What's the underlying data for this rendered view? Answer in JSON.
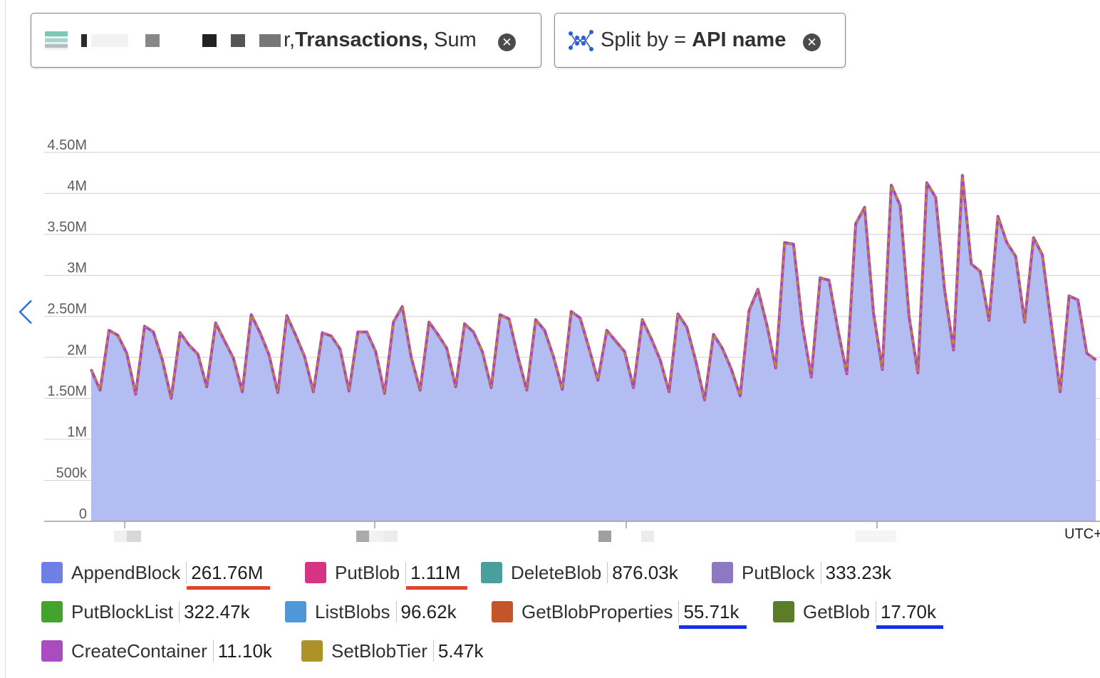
{
  "filters": {
    "metric": {
      "prefix": "r,",
      "bold": "Transactions,",
      "suffix": "Sum"
    },
    "split": {
      "label": "Split by",
      "eq": "=",
      "value": "API name"
    }
  },
  "chart_data": {
    "type": "area",
    "y_ticks": [
      "0",
      "500k",
      "1M",
      "1.50M",
      "2M",
      "2.50M",
      "3M",
      "3.50M",
      "4M",
      "4.50M"
    ],
    "y_tick_values": [
      0,
      500000,
      1000000,
      1500000,
      2000000,
      2500000,
      3000000,
      3500000,
      4000000,
      4500000
    ],
    "ylim": [
      0,
      4600000
    ],
    "timezone_label": "UTC+",
    "x_count": 114,
    "series_fill_color": "#b3bdf1",
    "series_line_colors": [
      "#b044b8",
      "#b09428"
    ],
    "values": [
      1850000,
      1600000,
      2330000,
      2270000,
      2050000,
      1550000,
      2380000,
      2310000,
      1970000,
      1500000,
      2300000,
      2150000,
      2040000,
      1640000,
      2420000,
      2200000,
      1990000,
      1580000,
      2520000,
      2300000,
      2030000,
      1570000,
      2510000,
      2270000,
      2010000,
      1580000,
      2300000,
      2260000,
      2100000,
      1590000,
      2310000,
      2310000,
      2070000,
      1560000,
      2430000,
      2620000,
      2000000,
      1600000,
      2430000,
      2280000,
      2110000,
      1640000,
      2410000,
      2310000,
      2070000,
      1630000,
      2520000,
      2470000,
      2010000,
      1600000,
      2460000,
      2330000,
      2010000,
      1610000,
      2560000,
      2480000,
      2110000,
      1720000,
      2330000,
      2200000,
      2070000,
      1630000,
      2460000,
      2230000,
      1970000,
      1580000,
      2530000,
      2370000,
      1960000,
      1480000,
      2280000,
      2110000,
      1860000,
      1530000,
      2570000,
      2830000,
      2400000,
      1870000,
      3400000,
      3380000,
      2400000,
      1760000,
      2970000,
      2940000,
      2340000,
      1800000,
      3630000,
      3830000,
      2540000,
      1850000,
      4100000,
      3850000,
      2500000,
      1810000,
      4130000,
      3950000,
      2820000,
      2090000,
      4220000,
      3140000,
      3050000,
      2450000,
      3720000,
      3400000,
      3230000,
      2430000,
      3460000,
      3250000,
      2410000,
      1580000,
      2750000,
      2700000,
      2050000,
      1970000
    ],
    "x_tick_labels_redacted": true,
    "legend": [
      {
        "name": "AppendBlock",
        "value": "261.76M",
        "color": "#6f80e4",
        "underline": "#e8412a"
      },
      {
        "name": "PutBlob",
        "value": "1.11M",
        "color": "#d63384",
        "underline": "#e8412a"
      },
      {
        "name": "DeleteBlob",
        "value": "876.03k",
        "color": "#4a9e9e",
        "underline": ""
      },
      {
        "name": "PutBlock",
        "value": "333.23k",
        "color": "#8e78c4",
        "underline": ""
      },
      {
        "name": "PutBlockList",
        "value": "322.47k",
        "color": "#43a32c",
        "underline": ""
      },
      {
        "name": "ListBlobs",
        "value": "96.62k",
        "color": "#4f97d9",
        "underline": ""
      },
      {
        "name": "GetBlobProperties",
        "value": "55.71k",
        "color": "#c4542a",
        "underline": "#1730e8"
      },
      {
        "name": "GetBlob",
        "value": "17.70k",
        "color": "#5b7d2a",
        "underline": "#1730e8"
      },
      {
        "name": "CreateContainer",
        "value": "11.10k",
        "color": "#a84cc0",
        "underline": ""
      },
      {
        "name": "SetBlobTier",
        "value": "5.47k",
        "color": "#ad9229",
        "underline": ""
      }
    ]
  }
}
